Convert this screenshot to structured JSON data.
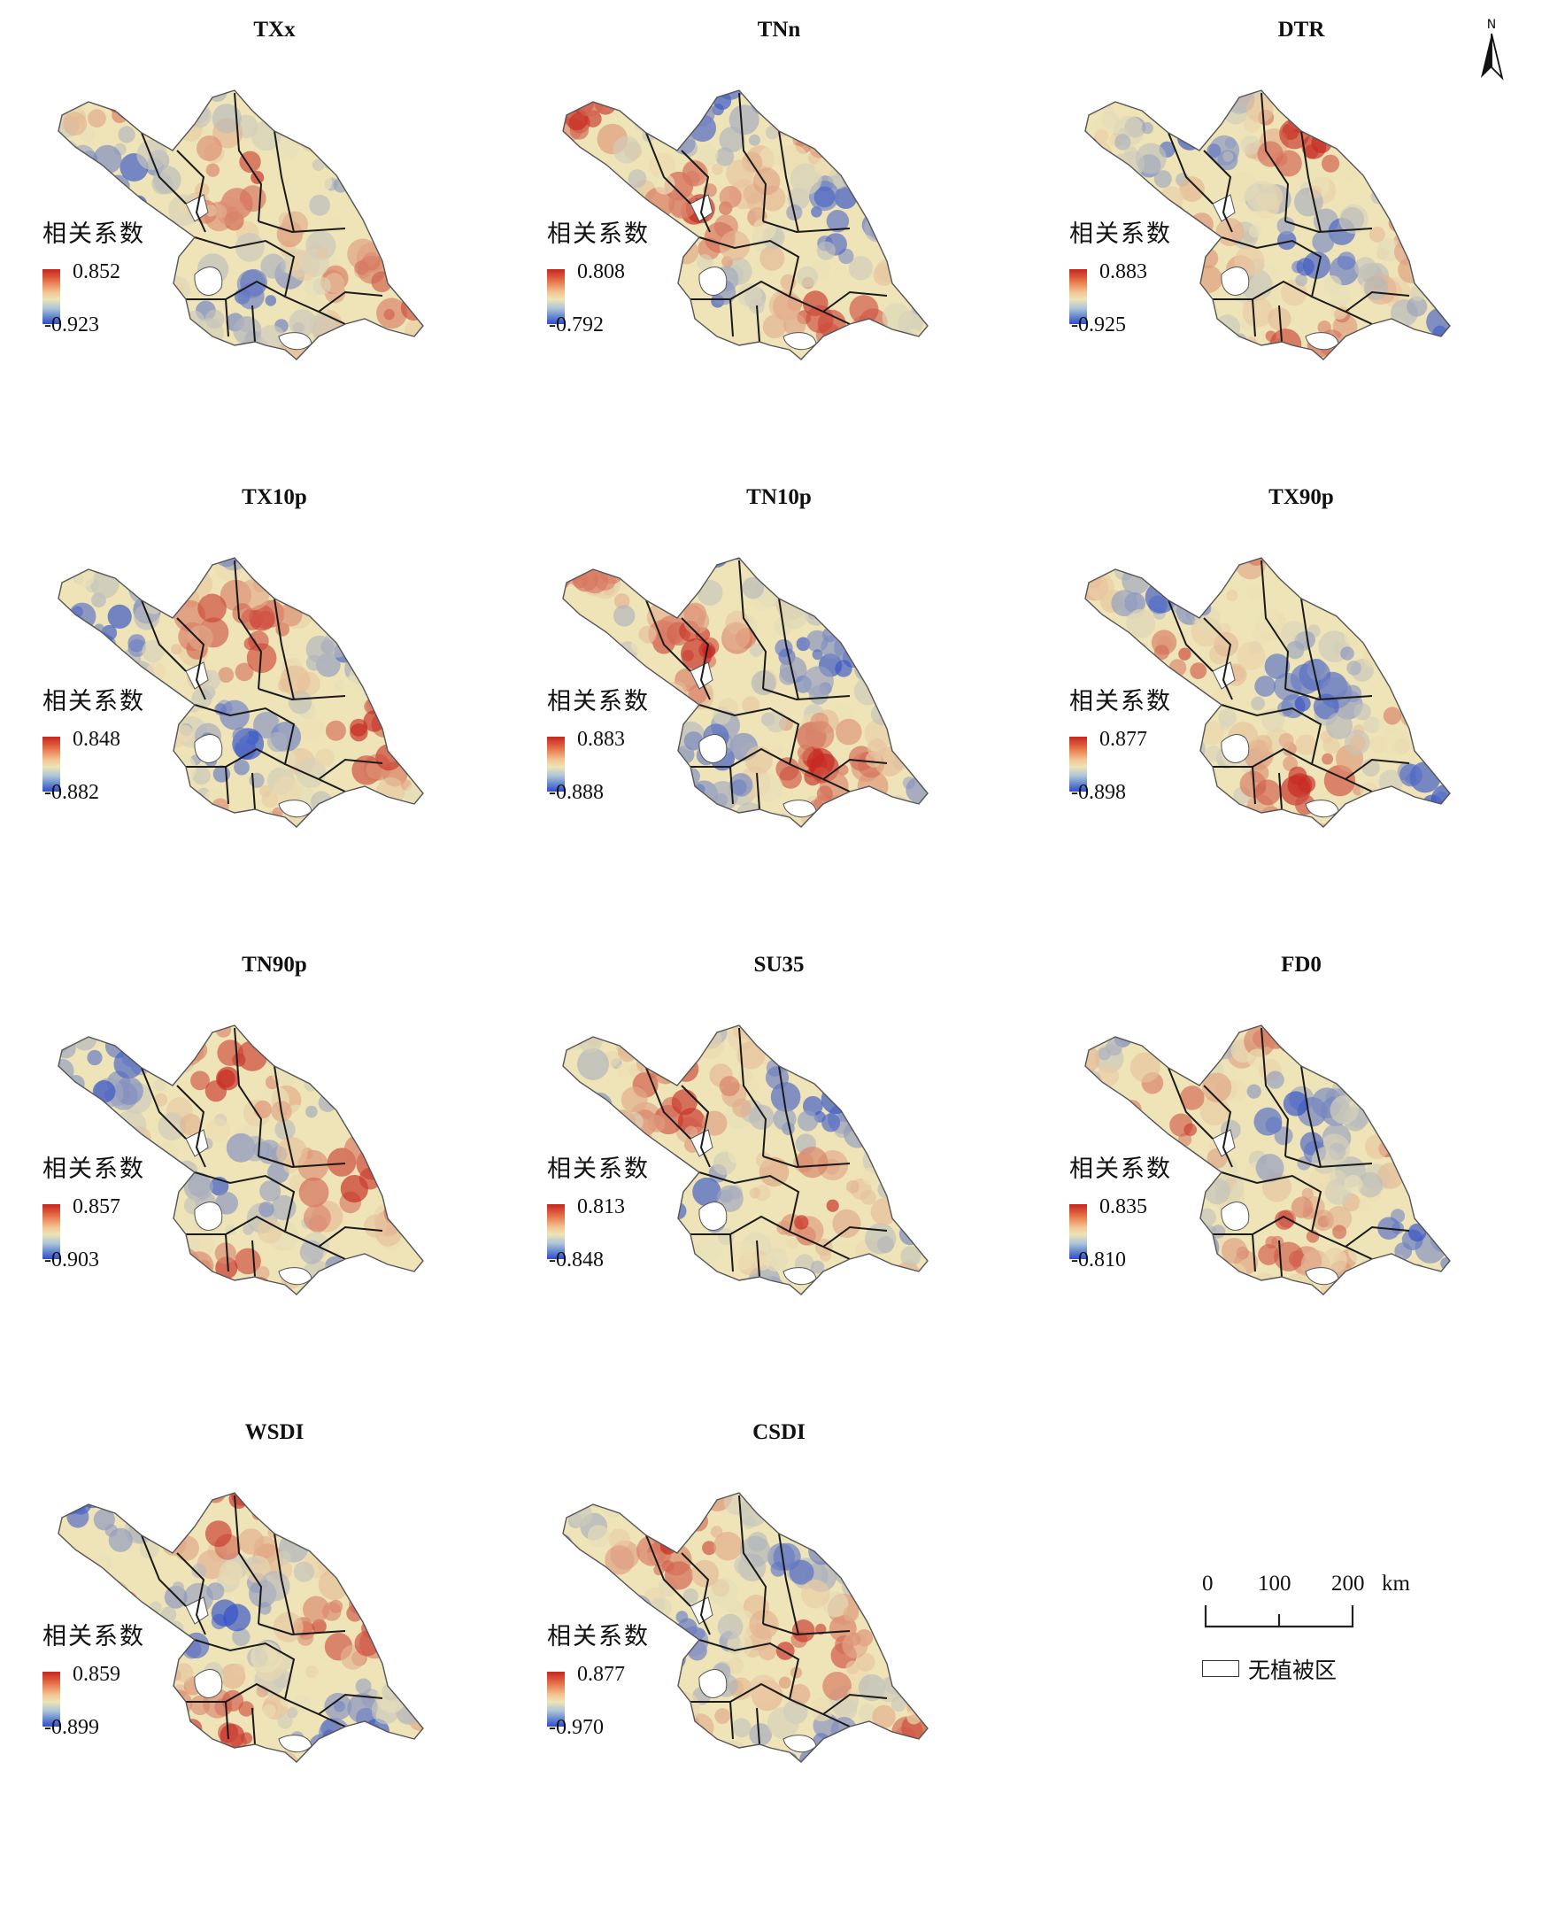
{
  "panels": [
    {
      "title": "TXx",
      "legend_title": "相关系数",
      "max": "0.852",
      "min": "-0.923"
    },
    {
      "title": "TNn",
      "legend_title": "相关系数",
      "max": "0.808",
      "min": "-0.792"
    },
    {
      "title": "DTR",
      "legend_title": "相关系数",
      "max": "0.883",
      "min": "-0.925"
    },
    {
      "title": "TX10p",
      "legend_title": "相关系数",
      "max": "0.848",
      "min": "-0.882"
    },
    {
      "title": "TN10p",
      "legend_title": "相关系数",
      "max": "0.883",
      "min": "-0.888"
    },
    {
      "title": "TX90p",
      "legend_title": "相关系数",
      "max": "0.877",
      "min": "-0.898"
    },
    {
      "title": "TN90p",
      "legend_title": "相关系数",
      "max": "0.857",
      "min": "-0.903"
    },
    {
      "title": "SU35",
      "legend_title": "相关系数",
      "max": "0.813",
      "min": "-0.848"
    },
    {
      "title": "FD0",
      "legend_title": "相关系数",
      "max": "0.835",
      "min": "-0.810"
    },
    {
      "title": "WSDI",
      "legend_title": "相关系数",
      "max": "0.859",
      "min": "-0.899"
    },
    {
      "title": "CSDI",
      "legend_title": "相关系数",
      "max": "0.877",
      "min": "-0.970"
    }
  ],
  "colormap": {
    "high": "#c6261f",
    "mid": "#eee4b8",
    "low": "#2f4fc8",
    "boundary": "#1a1a1a",
    "no_data": "#ffffff"
  },
  "north_arrow": {
    "letter": "N"
  },
  "scale_bar": {
    "ticks": [
      "0",
      "100",
      "200"
    ],
    "unit": "km"
  },
  "nodata_legend": {
    "label": "无植被区"
  }
}
